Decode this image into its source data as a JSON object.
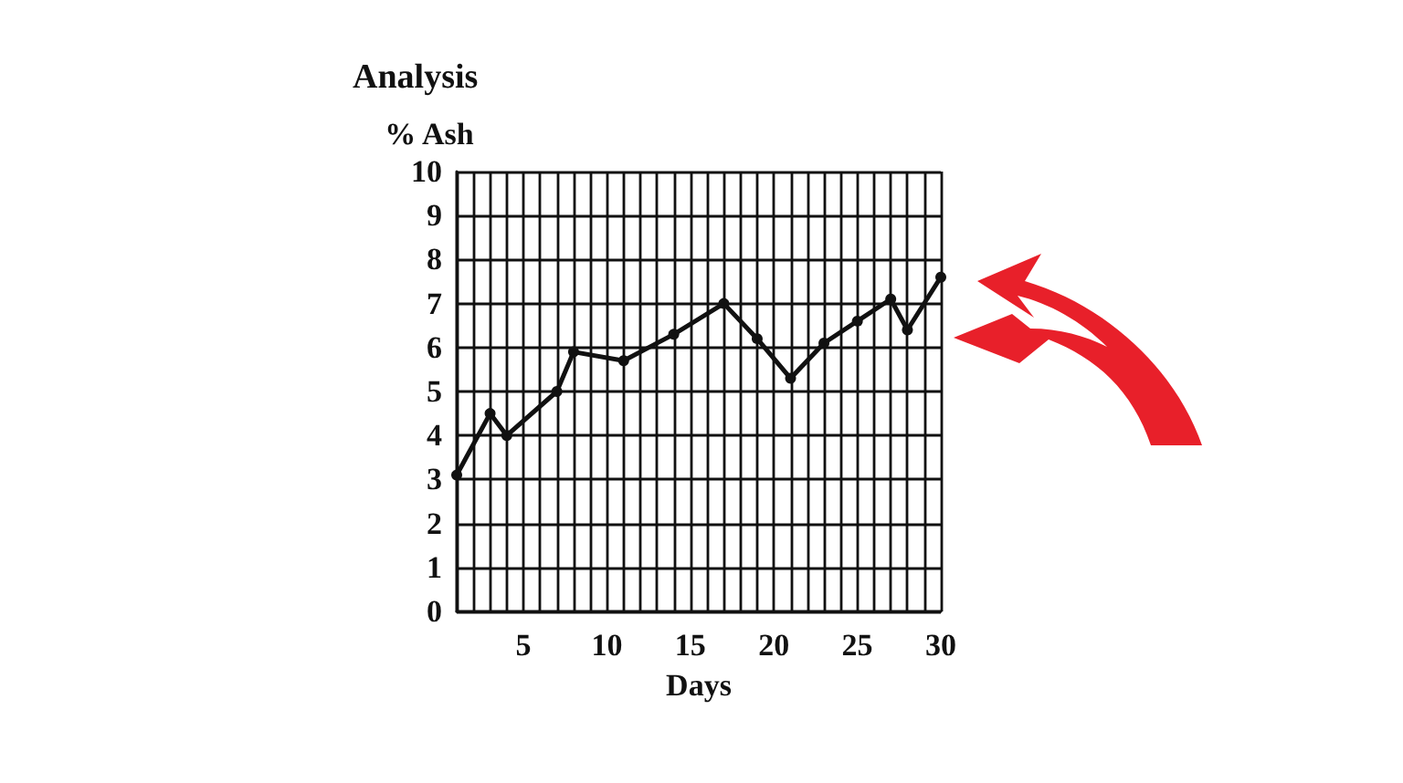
{
  "chart_data": {
    "type": "line",
    "title": "Analysis",
    "ylabel": "% Ash",
    "xlabel": "Days",
    "x": [
      1,
      3,
      4,
      7,
      8,
      11,
      14,
      17,
      19,
      21,
      23,
      25,
      27,
      28,
      30
    ],
    "series": [
      {
        "color": "#111111",
        "values": [
          3.1,
          4.5,
          4.0,
          5.0,
          5.9,
          5.7,
          6.3,
          7.0,
          6.2,
          5.3,
          6.1,
          6.6,
          7.1,
          6.4,
          7.6
        ]
      }
    ],
    "xlim": [
      1,
      30
    ],
    "xticks": [
      {
        "value": 1,
        "label": null
      },
      {
        "value": 2,
        "label": null
      },
      {
        "value": 3,
        "label": null
      },
      {
        "value": 4,
        "label": null
      },
      5,
      {
        "value": 6,
        "label": null
      },
      {
        "value": 7,
        "label": null
      },
      {
        "value": 8,
        "label": null
      },
      {
        "value": 9,
        "label": null
      },
      10,
      {
        "value": 11,
        "label": null
      },
      {
        "value": 12,
        "label": null
      },
      {
        "value": 13,
        "label": null
      },
      {
        "value": 14,
        "label": null
      },
      15,
      {
        "value": 16,
        "label": null
      },
      {
        "value": 17,
        "label": null
      },
      {
        "value": 18,
        "label": null
      },
      {
        "value": 19,
        "label": null
      },
      20,
      {
        "value": 21,
        "label": null
      },
      {
        "value": 22,
        "label": null
      },
      {
        "value": 23,
        "label": null
      },
      {
        "value": 24,
        "label": null
      },
      25,
      {
        "value": 26,
        "label": null
      },
      {
        "value": 27,
        "label": null
      },
      {
        "value": 28,
        "label": null
      },
      {
        "value": 29,
        "label": null
      },
      30
    ],
    "ylim": [
      0,
      10
    ],
    "yticks": [
      0,
      1,
      2,
      3,
      4,
      5,
      6,
      7,
      8,
      9,
      10
    ],
    "grid": true,
    "marker": "circle",
    "line_style": "solid"
  }
}
